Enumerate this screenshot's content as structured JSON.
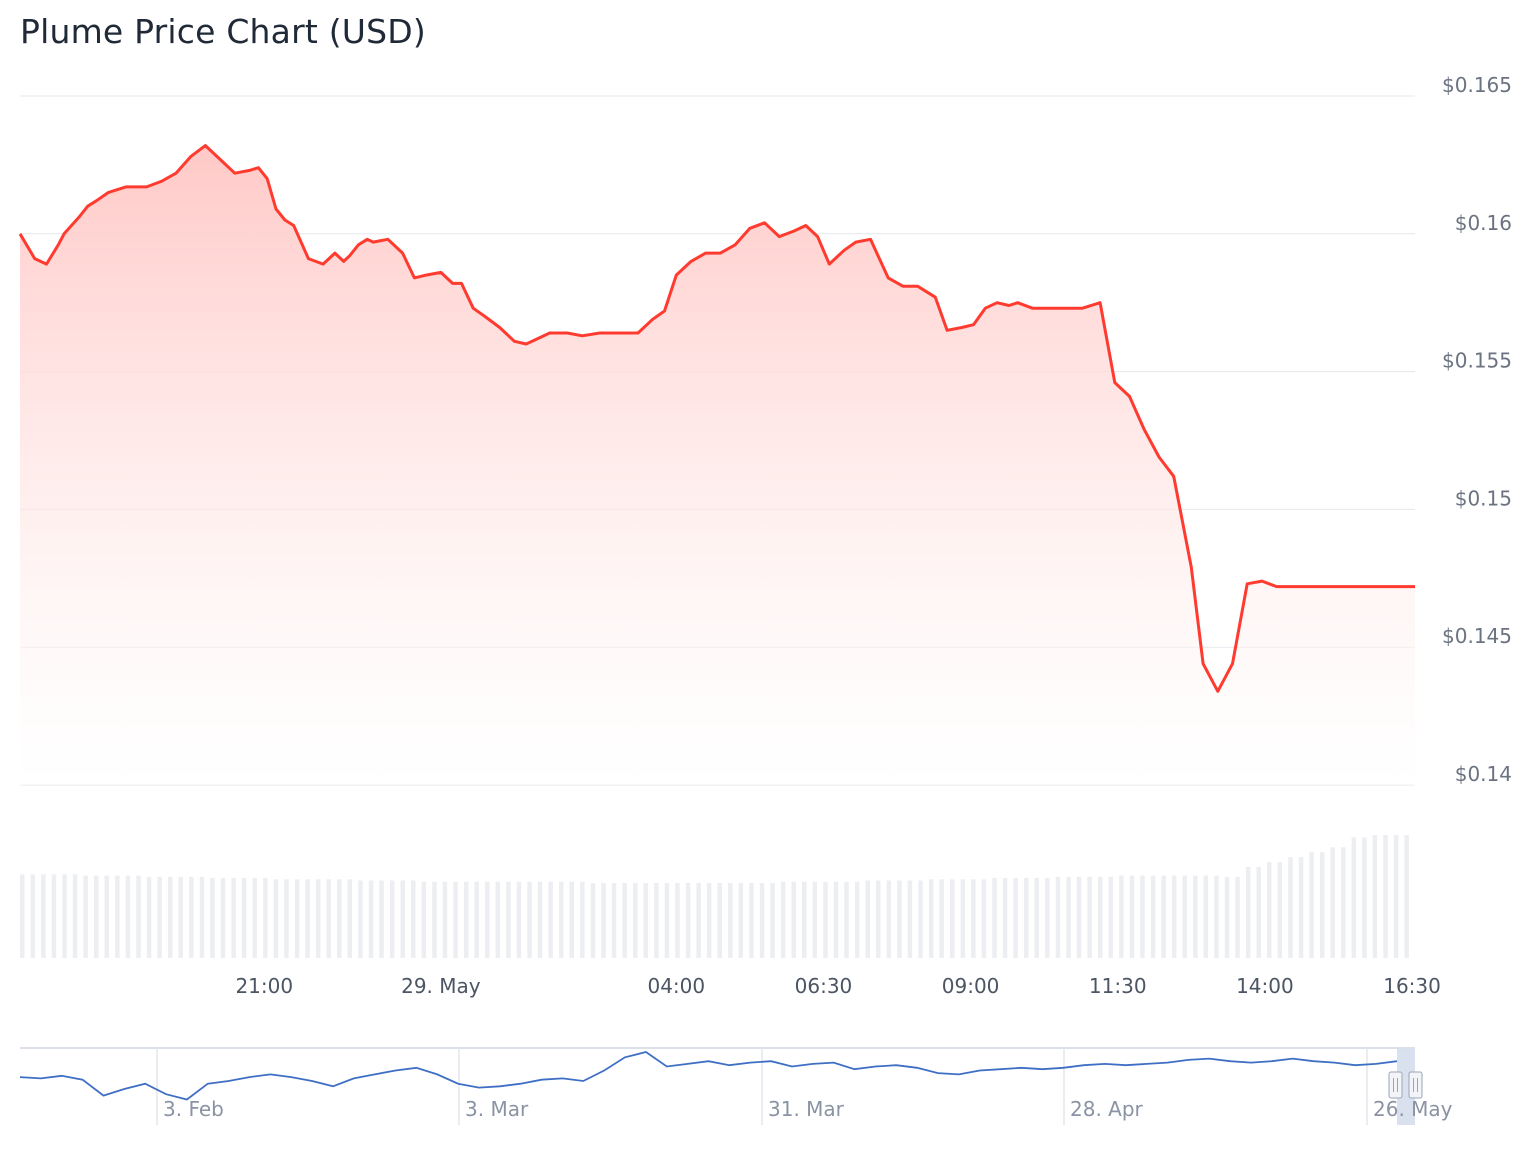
{
  "header": {
    "title": "Plume Price Chart (USD)"
  },
  "colors": {
    "price_line": "#ff3b30",
    "area_top": "#ffc9c7",
    "volume_bar": "#eceef2",
    "navigator_line": "#3f6fc4",
    "grid": "#e5e7eb"
  },
  "chart_data": [
    {
      "type": "area",
      "title": "Plume Price Chart (USD)",
      "ylabel": "USD",
      "ylim": [
        0.14,
        0.165
      ],
      "yticks": [
        0.14,
        0.145,
        0.15,
        0.155,
        0.16,
        0.165
      ],
      "ytick_labels": [
        "$0.14",
        "$0.145",
        "$0.15",
        "$0.155",
        "$0.16",
        "$0.165"
      ],
      "xtick_labels": [
        "21:00",
        "29. May",
        "04:00",
        "06:30",
        "09:00",
        "11:30",
        "14:00",
        "16:30"
      ],
      "xlim_hours": [
        16.85,
        40.55
      ],
      "xticks_hours": [
        21.0,
        24.0,
        28.0,
        30.5,
        33.0,
        35.5,
        38.0,
        40.5
      ],
      "grid": true,
      "series": [
        {
          "name": "Price",
          "x_hours": [
            16.85,
            17.1,
            17.3,
            17.5,
            17.6,
            17.85,
            18.0,
            18.15,
            18.35,
            18.5,
            18.65,
            18.85,
            19.0,
            19.25,
            19.5,
            19.75,
            20.0,
            20.25,
            20.5,
            20.75,
            20.9,
            21.05,
            21.2,
            21.35,
            21.5,
            21.75,
            22.0,
            22.2,
            22.35,
            22.45,
            22.6,
            22.75,
            22.85,
            23.1,
            23.35,
            23.55,
            23.75,
            24.0,
            24.2,
            24.35,
            24.55,
            24.75,
            25.0,
            25.25,
            25.45,
            25.65,
            25.85,
            26.15,
            26.4,
            26.7,
            26.9,
            27.2,
            27.35,
            27.6,
            27.8,
            28.0,
            28.25,
            28.5,
            28.75,
            29.0,
            29.25,
            29.5,
            29.75,
            30.0,
            30.2,
            30.4,
            30.6,
            30.85,
            31.05,
            31.3,
            31.6,
            31.85,
            32.1,
            32.4,
            32.6,
            32.85,
            33.05,
            33.25,
            33.45,
            33.65,
            33.8,
            34.05,
            34.35,
            34.65,
            34.9,
            35.2,
            35.45,
            35.7,
            35.95,
            36.2,
            36.45,
            36.75,
            36.95,
            37.2,
            37.45,
            37.7,
            37.95,
            38.2,
            38.45,
            38.7,
            38.8,
            38.95,
            39.05,
            39.25,
            39.45,
            39.6,
            39.75,
            39.9,
            39.98,
            40.08,
            40.2,
            40.27,
            40.34,
            40.45,
            40.55
          ],
          "values": [
            0.16,
            0.1591,
            0.1589,
            0.1596,
            0.16,
            0.1606,
            0.161,
            0.1612,
            0.1615,
            0.1616,
            0.1617,
            0.1617,
            0.1617,
            0.1619,
            0.1622,
            0.1628,
            0.1632,
            0.1627,
            0.1622,
            0.1623,
            0.1624,
            0.162,
            0.1609,
            0.1605,
            0.1603,
            0.1591,
            0.1589,
            0.1593,
            0.159,
            0.1592,
            0.1596,
            0.1598,
            0.1597,
            0.1598,
            0.1593,
            0.1584,
            0.1585,
            0.1586,
            0.1582,
            0.1582,
            0.1573,
            0.157,
            0.1566,
            0.1561,
            0.156,
            0.1562,
            0.1564,
            0.1564,
            0.1563,
            0.1564,
            0.1564,
            0.1564,
            0.1564,
            0.1569,
            0.1572,
            0.1585,
            0.159,
            0.1593,
            0.1593,
            0.1596,
            0.1602,
            0.1604,
            0.1599,
            0.1601,
            0.1603,
            0.1599,
            0.1589,
            0.1594,
            0.1597,
            0.1598,
            0.1584,
            0.1581,
            0.1581,
            0.1577,
            0.1565,
            0.1566,
            0.1567,
            0.1573,
            0.1575,
            0.1574,
            0.1575,
            0.1573,
            0.1573,
            0.1573,
            0.1573,
            0.1575,
            0.1546,
            0.1541,
            0.1529,
            0.1519,
            0.1512,
            0.1479,
            0.1444,
            0.1434,
            0.1444,
            0.1473,
            0.1474,
            0.1472,
            0.1472,
            0.1472,
            0.1472,
            0.1472,
            0.1472,
            0.1472,
            0.1472,
            0.1472,
            0.1472,
            0.1472,
            0.1472,
            0.1472,
            0.1472,
            0.1472,
            0.1472,
            0.1472,
            0.1472
          ]
        }
      ]
    },
    {
      "type": "bar",
      "title": "",
      "series": [
        {
          "name": "",
          "relative_values": [
            0.68,
            0.68,
            0.68,
            0.67,
            0.67,
            0.67,
            0.66,
            0.66,
            0.66,
            0.65,
            0.65,
            0.65,
            0.64,
            0.64,
            0.64,
            0.64,
            0.63,
            0.63,
            0.63,
            0.62,
            0.62,
            0.62,
            0.62,
            0.62,
            0.62,
            0.62,
            0.62,
            0.61,
            0.61,
            0.61,
            0.61,
            0.61,
            0.61,
            0.61,
            0.61,
            0.61,
            0.62,
            0.62,
            0.62,
            0.62,
            0.63,
            0.63,
            0.63,
            0.64,
            0.64,
            0.64,
            0.65,
            0.65,
            0.65,
            0.66,
            0.66,
            0.66,
            0.67,
            0.67,
            0.67,
            0.67,
            0.67,
            0.66,
            0.74,
            0.78,
            0.82,
            0.86,
            0.9,
            0.98,
            1.0,
            1.0
          ]
        }
      ]
    },
    {
      "type": "line",
      "title": "",
      "xtick_labels": [
        "3. Feb",
        "3. Mar",
        "31. Mar",
        "28. Apr",
        "26. May"
      ],
      "series": [
        {
          "name": "",
          "relative_values": [
            0.62,
            0.6,
            0.64,
            0.58,
            0.34,
            0.44,
            0.52,
            0.36,
            0.28,
            0.52,
            0.56,
            0.62,
            0.66,
            0.62,
            0.56,
            0.48,
            0.6,
            0.66,
            0.72,
            0.76,
            0.66,
            0.52,
            0.46,
            0.48,
            0.52,
            0.58,
            0.6,
            0.56,
            0.72,
            0.92,
            1.0,
            0.78,
            0.82,
            0.86,
            0.8,
            0.84,
            0.86,
            0.78,
            0.82,
            0.84,
            0.74,
            0.78,
            0.8,
            0.76,
            0.68,
            0.66,
            0.72,
            0.74,
            0.76,
            0.74,
            0.76,
            0.8,
            0.82,
            0.8,
            0.82,
            0.84,
            0.88,
            0.9,
            0.86,
            0.84,
            0.86,
            0.9,
            0.86,
            0.84,
            0.8,
            0.82,
            0.86
          ]
        }
      ]
    }
  ]
}
